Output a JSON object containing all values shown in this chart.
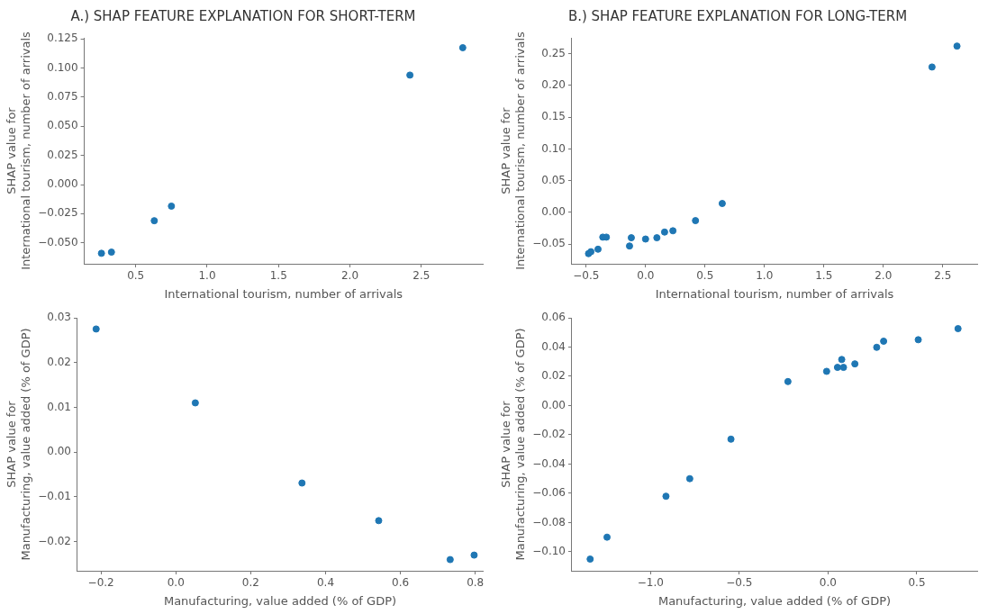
{
  "chart_data": [
    {
      "type": "scatter",
      "title": "A.) SHAP FEATURE EXPLANATION FOR SHORT-TERM",
      "xlabel": "International tourism, number of arrivals",
      "ylabel": "SHAP value for\nInternational tourism, number of arrivals",
      "marker": "circle",
      "x": [
        0.26,
        0.33,
        0.63,
        0.75,
        2.42,
        2.79
      ],
      "series": [
        {
          "color": "#1f77b4",
          "values": [
            -0.059,
            -0.058,
            -0.031,
            -0.0185,
            0.094,
            0.1175
          ]
        }
      ],
      "xlim": [
        0.14,
        2.93
      ],
      "xticks": [
        {
          "value": 0.5,
          "label": "0.5"
        },
        {
          "value": 1,
          "label": "1.0"
        },
        {
          "value": 1.5,
          "label": "1.5"
        },
        {
          "value": 2,
          "label": "2.0"
        },
        {
          "value": 2.5,
          "label": "2.5"
        }
      ],
      "ylim": [
        -0.068,
        0.126
      ],
      "yticks": [
        {
          "value": -0.05,
          "label": "−0.050"
        },
        {
          "value": -0.025,
          "label": "−0.025"
        },
        {
          "value": 0,
          "label": "0.000"
        },
        {
          "value": 0.025,
          "label": "0.025"
        },
        {
          "value": 0.05,
          "label": "0.050"
        },
        {
          "value": 0.075,
          "label": "0.075"
        },
        {
          "value": 0.1,
          "label": "0.100"
        },
        {
          "value": 0.125,
          "label": "0.125"
        }
      ]
    },
    {
      "type": "scatter",
      "title": "B.) SHAP FEATURE EXPLANATION FOR LONG-TERM",
      "xlabel": "International tourism, number of arrivals",
      "ylabel": "SHAP value for\nInternational tourism, number of arrivals",
      "marker": "circle",
      "x": [
        -0.48,
        -0.46,
        -0.4,
        -0.36,
        -0.33,
        -0.135,
        -0.12,
        0.0,
        0.095,
        0.16,
        0.23,
        0.42,
        0.645,
        2.41,
        2.62
      ],
      "series": [
        {
          "color": "#1f77b4",
          "values": [
            -0.065,
            -0.062,
            -0.058,
            -0.039,
            -0.039,
            -0.053,
            -0.04,
            -0.042,
            -0.04,
            -0.031,
            -0.029,
            -0.013,
            0.014,
            0.229,
            0.262
          ]
        }
      ],
      "xlim": [
        -0.62,
        2.79
      ],
      "xticks": [
        {
          "value": -0.5,
          "label": "−0.5"
        },
        {
          "value": 0,
          "label": "0.0"
        },
        {
          "value": 0.5,
          "label": "0.5"
        },
        {
          "value": 1,
          "label": "1.0"
        },
        {
          "value": 1.5,
          "label": "1.5"
        },
        {
          "value": 2,
          "label": "2.0"
        },
        {
          "value": 2.5,
          "label": "2.5"
        }
      ],
      "ylim": [
        -0.081,
        0.275
      ],
      "yticks": [
        {
          "value": -0.05,
          "label": "−0.05"
        },
        {
          "value": 0,
          "label": "0.00"
        },
        {
          "value": 0.05,
          "label": "0.05"
        },
        {
          "value": 0.1,
          "label": "0.10"
        },
        {
          "value": 0.15,
          "label": "0.15"
        },
        {
          "value": 0.2,
          "label": "0.20"
        },
        {
          "value": 0.25,
          "label": "0.25"
        }
      ]
    },
    {
      "type": "scatter",
      "xlabel": "Manufacturing, value added (% of GDP)",
      "ylabel": "SHAP value for\nManufacturing, value added (% of GDP)",
      "marker": "circle",
      "x": [
        -0.213,
        0.052,
        0.337,
        0.542,
        0.733,
        0.797
      ],
      "series": [
        {
          "color": "#1f77b4",
          "values": [
            0.0275,
            0.011,
            -0.0069,
            -0.0153,
            -0.024,
            -0.023
          ]
        }
      ],
      "xlim": [
        -0.263,
        0.82
      ],
      "xticks": [
        {
          "value": -0.2,
          "label": "−0.2"
        },
        {
          "value": 0,
          "label": "0.0"
        },
        {
          "value": 0.2,
          "label": "0.2"
        },
        {
          "value": 0.4,
          "label": "0.4"
        },
        {
          "value": 0.6,
          "label": "0.6"
        },
        {
          "value": 0.8,
          "label": "0.8"
        }
      ],
      "ylim": [
        -0.0265,
        0.03
      ],
      "yticks": [
        {
          "value": -0.02,
          "label": "−0.02"
        },
        {
          "value": -0.01,
          "label": "−0.01"
        },
        {
          "value": 0,
          "label": "0.00"
        },
        {
          "value": 0.01,
          "label": "0.01"
        },
        {
          "value": 0.02,
          "label": "0.02"
        },
        {
          "value": 0.03,
          "label": "0.03"
        }
      ]
    },
    {
      "type": "scatter",
      "xlabel": "Manufacturing, value added (% of GDP)",
      "ylabel": "SHAP value for\nManufacturing, value added (% of GDP)",
      "marker": "circle",
      "x": [
        -1.34,
        -1.245,
        -0.913,
        -0.779,
        -0.547,
        -0.226,
        -0.008,
        0.053,
        0.077,
        0.087,
        0.151,
        0.274,
        0.313,
        0.508,
        0.732
      ],
      "series": [
        {
          "color": "#1f77b4",
          "values": [
            -0.105,
            -0.09,
            -0.062,
            -0.05,
            -0.023,
            0.0164,
            0.0234,
            0.0261,
            0.0315,
            0.0261,
            0.0285,
            0.0398,
            0.044,
            0.045,
            0.0526
          ]
        }
      ],
      "xlim": [
        -1.443,
        0.84
      ],
      "xticks": [
        {
          "value": -1,
          "label": "−1.0"
        },
        {
          "value": -0.5,
          "label": "−0.5"
        },
        {
          "value": 0,
          "label": "0.0"
        },
        {
          "value": 0.5,
          "label": "0.5"
        }
      ],
      "ylim": [
        -0.113,
        0.06
      ],
      "yticks": [
        {
          "value": -0.1,
          "label": "−0.10"
        },
        {
          "value": -0.08,
          "label": "−0.08"
        },
        {
          "value": -0.06,
          "label": "−0.06"
        },
        {
          "value": -0.04,
          "label": "−0.04"
        },
        {
          "value": -0.02,
          "label": "−0.02"
        },
        {
          "value": 0,
          "label": "0.00"
        },
        {
          "value": 0.02,
          "label": "0.02"
        },
        {
          "value": 0.04,
          "label": "0.04"
        },
        {
          "value": 0.06,
          "label": "0.06"
        }
      ]
    }
  ]
}
